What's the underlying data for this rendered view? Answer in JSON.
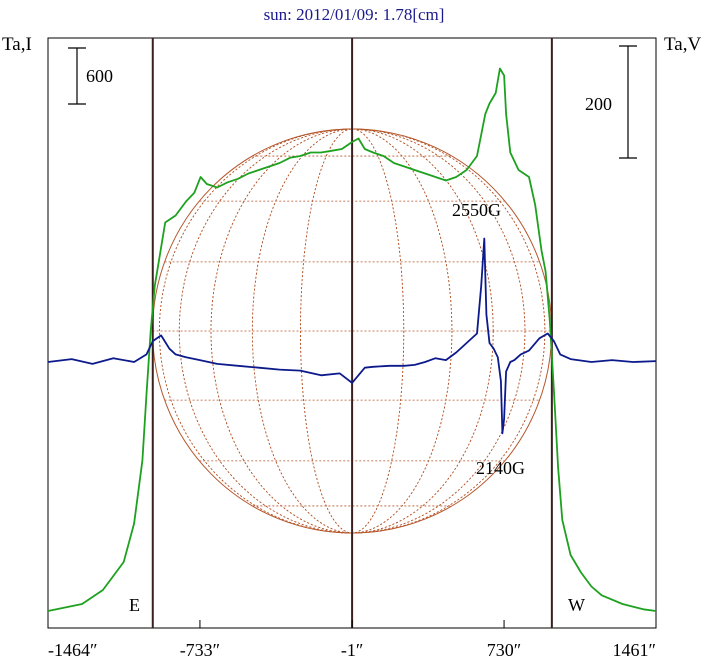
{
  "chart_data": {
    "type": "line",
    "title": "sun: 2012/01/09: 1.78[cm]",
    "left_axis_label": "Ta,I",
    "right_axis_label": "Ta,V",
    "left_scale_bar_label": "600",
    "right_scale_bar_label": "200",
    "x_ticks": [
      -1464,
      -733,
      -1,
      730,
      1461
    ],
    "x_tick_labels": [
      "-1464″",
      "-733″",
      "-1″",
      "730″",
      "1461″"
    ],
    "xlim": [
      -1464,
      1461
    ],
    "limb_markers": {
      "east": "E",
      "west": "W",
      "east_x": -960,
      "west_x": 960,
      "center_x": -1
    },
    "annotations": [
      {
        "text": "2550G",
        "x": 640,
        "series": "Ta,V"
      },
      {
        "text": "2140G",
        "x": 740,
        "series": "Ta,V"
      }
    ],
    "grid": false,
    "colors": {
      "title": "#1a1a8c",
      "intensity": "#1ea11e",
      "polarization": "#0c1a8c",
      "disk": "#b5562b",
      "vertical_lines": "#3a1f1f",
      "axis": "#000000"
    },
    "series": [
      {
        "axis": "Ta,I",
        "color": "#1ea11e",
        "units": "relative",
        "x": [
          -1464,
          -1300,
          -1200,
          -1100,
          -1050,
          -1010,
          -990,
          -970,
          -950,
          -935,
          -900,
          -850,
          -800,
          -760,
          -730,
          -700,
          -650,
          -600,
          -550,
          -500,
          -450,
          -400,
          -350,
          -300,
          -250,
          -200,
          -150,
          -100,
          -50,
          -1,
          30,
          60,
          100,
          150,
          200,
          250,
          300,
          350,
          400,
          450,
          500,
          550,
          600,
          640,
          660,
          690,
          710,
          730,
          740,
          760,
          800,
          850,
          880,
          910,
          930,
          950,
          970,
          990,
          1010,
          1050,
          1100,
          1150,
          1200,
          1300,
          1400,
          1461
        ],
        "y": [
          0,
          20,
          60,
          140,
          250,
          430,
          620,
          800,
          930,
          985,
          1110,
          1130,
          1170,
          1195,
          1240,
          1220,
          1210,
          1225,
          1235,
          1250,
          1260,
          1270,
          1280,
          1295,
          1300,
          1310,
          1310,
          1315,
          1320,
          1340,
          1350,
          1320,
          1310,
          1300,
          1280,
          1270,
          1260,
          1250,
          1240,
          1230,
          1240,
          1260,
          1300,
          1420,
          1450,
          1480,
          1550,
          1530,
          1420,
          1310,
          1260,
          1240,
          1160,
          1030,
          970,
          830,
          630,
          410,
          260,
          160,
          110,
          70,
          45,
          20,
          5,
          0
        ]
      },
      {
        "axis": "Ta,V",
        "color": "#0c1a8c",
        "units": "relative",
        "x": [
          -1464,
          -1350,
          -1250,
          -1150,
          -1050,
          -990,
          -960,
          -920,
          -880,
          -850,
          -800,
          -733,
          -650,
          -550,
          -450,
          -350,
          -250,
          -150,
          -60,
          -1,
          60,
          100,
          180,
          250,
          300,
          350,
          400,
          450,
          500,
          550,
          600,
          620,
          635,
          645,
          660,
          680,
          700,
          715,
          722,
          730,
          740,
          760,
          780,
          810,
          850,
          900,
          940,
          970,
          1000,
          1050,
          1150,
          1250,
          1350,
          1461
        ],
        "y": [
          0,
          3,
          -2,
          4,
          0,
          8,
          22,
          28,
          14,
          8,
          5,
          2,
          -2,
          -4,
          -6,
          -8,
          -9,
          -14,
          -12,
          -22,
          -6,
          -5,
          -4,
          -4,
          -3,
          0,
          4,
          2,
          10,
          20,
          30,
          80,
          130,
          50,
          20,
          14,
          5,
          -20,
          -75,
          -60,
          -10,
          0,
          2,
          8,
          12,
          25,
          30,
          22,
          8,
          3,
          0,
          2,
          0,
          1
        ]
      }
    ]
  }
}
